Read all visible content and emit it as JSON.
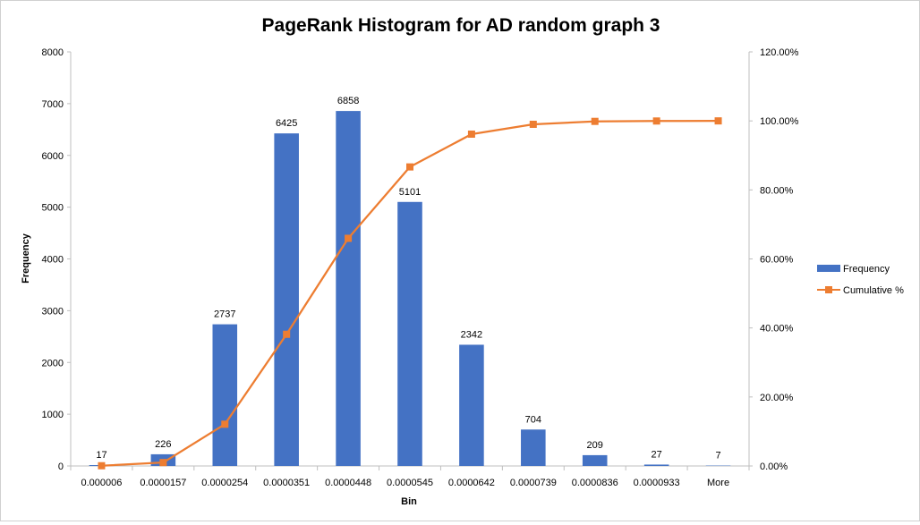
{
  "chart_data": {
    "type": "bar",
    "title": "PageRank Histogram for AD random graph 3",
    "xlabel": "Bin",
    "ylabel": "Frequency",
    "categories": [
      "0.000006",
      "0.0000157",
      "0.0000254",
      "0.0000351",
      "0.0000448",
      "0.0000545",
      "0.0000642",
      "0.0000739",
      "0.0000836",
      "0.0000933",
      "More"
    ],
    "series": [
      {
        "name": "Frequency",
        "type": "bar",
        "axis": "left",
        "color": "#4472C4",
        "values": [
          17,
          226,
          2737,
          6425,
          6858,
          5101,
          2342,
          704,
          209,
          27,
          7
        ],
        "data_labels": [
          "17",
          "226",
          "2737",
          "6425",
          "6858",
          "5101",
          "2342",
          "704",
          "209",
          "27",
          "7"
        ]
      },
      {
        "name": "Cumulative %",
        "type": "line",
        "axis": "right",
        "color": "#ED7D31",
        "marker": "square",
        "values": [
          0.07,
          0.99,
          12.1,
          38.16,
          65.97,
          86.66,
          96.16,
          99.01,
          99.86,
          99.97,
          100.0
        ]
      }
    ],
    "ylim": [
      0,
      8000
    ],
    "y_ticks": [
      "0",
      "1000",
      "2000",
      "3000",
      "4000",
      "5000",
      "6000",
      "7000",
      "8000"
    ],
    "y2lim": [
      0,
      120
    ],
    "y2_ticks": [
      "0.00%",
      "20.00%",
      "40.00%",
      "60.00%",
      "80.00%",
      "100.00%",
      "120.00%"
    ],
    "grid": false,
    "legend_position": "right"
  }
}
